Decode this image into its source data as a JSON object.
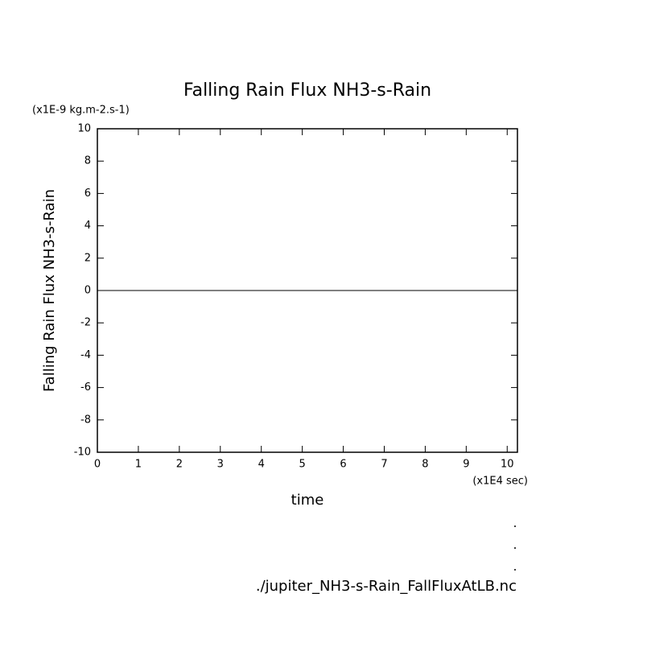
{
  "chart_data": {
    "type": "line",
    "title": "Falling Rain Flux NH3-s-Rain",
    "y_unit": "(x1E-9 kg.m-2.s-1)",
    "y_label": "Falling Rain Flux NH3-s-Rain",
    "x_label": "time",
    "x_unit": "(x1E4 sec)",
    "footer": "./jupiter_NH3-s-Rain_FallFluxAtLB.nc",
    "x": [
      0,
      10.25
    ],
    "series": [
      {
        "name": "Falling Rain Flux NH3-s-Rain",
        "color": "#000000",
        "values": [
          0,
          0
        ]
      }
    ],
    "xlim": [
      0,
      10.25
    ],
    "ylim": [
      -10,
      10
    ],
    "xticks": [
      0,
      1,
      2,
      3,
      4,
      5,
      6,
      7,
      8,
      9,
      10
    ],
    "yticks": [
      -10,
      -8,
      -6,
      -4,
      -2,
      0,
      2,
      4,
      6,
      8,
      10
    ]
  }
}
